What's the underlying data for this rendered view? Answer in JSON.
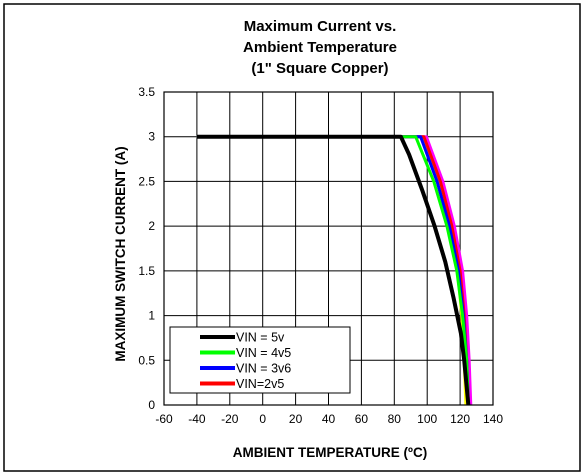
{
  "chart_data": {
    "type": "line",
    "title_lines": [
      "Maximum Current vs.",
      "Ambient Temperature",
      "(1\" Square Copper)"
    ],
    "xlabel": "AMBIENT TEMPERATURE (ºC)",
    "ylabel": "MAXIMUM SWITCH CURRENT (A)",
    "xlim": [
      -60,
      140
    ],
    "ylim": [
      0,
      3.5
    ],
    "x_ticks": [
      "-60",
      "-40",
      "-20",
      "0",
      "20",
      "40",
      "60",
      "80",
      "100",
      "120",
      "140"
    ],
    "y_ticks": [
      "0",
      "0.5",
      "1",
      "1.5",
      "2",
      "2.5",
      "3",
      "3.5"
    ],
    "grid": true,
    "legend_position": "bottom-left",
    "series": [
      {
        "name": "VIN=2v5",
        "color": "#ff0000",
        "x": [
          -40,
          98,
          108,
          115,
          120,
          122.5,
          124,
          125
        ],
        "y": [
          3.0,
          3.0,
          2.5,
          2.0,
          1.5,
          1.0,
          0.5,
          0.0
        ]
      },
      {
        "name": "VIN = 3v6",
        "color": "#0000ff",
        "x": [
          -40,
          96,
          106,
          113.5,
          119,
          122,
          124,
          125
        ],
        "y": [
          3.0,
          3.0,
          2.5,
          2.0,
          1.5,
          1.0,
          0.5,
          0.0
        ]
      },
      {
        "name": "VIN = 4v5",
        "color": "#00ff00",
        "x": [
          -40,
          93,
          104,
          112,
          118,
          121.5,
          124,
          125
        ],
        "y": [
          3.0,
          3.0,
          2.5,
          2.0,
          1.5,
          1.0,
          0.5,
          0.0
        ]
      },
      {
        "name": "VIN = 5v",
        "color": "#000000",
        "x": [
          -40,
          84,
          89,
          97,
          104.5,
          111,
          116,
          120.5,
          122.5,
          124,
          125
        ],
        "y": [
          3.0,
          3.0,
          2.8,
          2.4,
          2.0,
          1.6,
          1.2,
          0.8,
          0.5,
          0.2,
          0.0
        ]
      }
    ],
    "extra_series_colors": [
      "#ffff00",
      "#00ffff",
      "#ff00ff"
    ],
    "legend_order": [
      "VIN = 5v",
      "VIN = 4v5",
      "VIN = 3v6",
      "VIN=2v5"
    ]
  }
}
